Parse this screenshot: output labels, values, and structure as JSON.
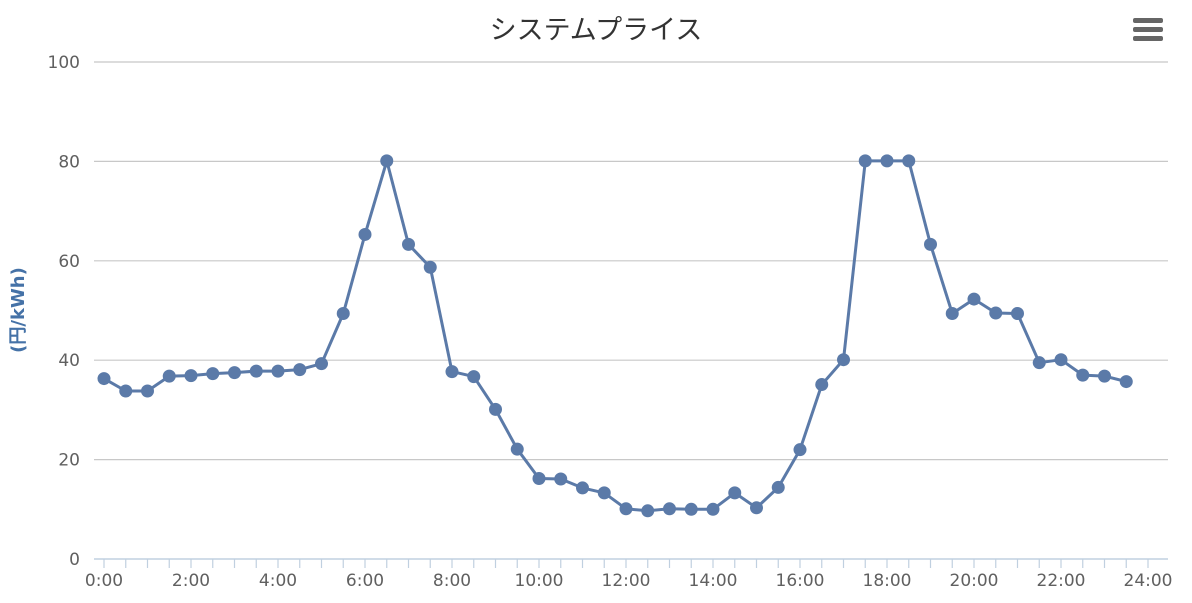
{
  "title": "システムプライス",
  "menu": {
    "icon": "hamburger-menu-icon"
  },
  "chart_data": {
    "type": "line",
    "title": "システムプライス",
    "xlabel": "",
    "ylabel": "(円/kWh)",
    "xlim": [
      0,
      24
    ],
    "ylim": [
      0,
      100
    ],
    "x_ticks": [
      "0:00",
      "2:00",
      "4:00",
      "6:00",
      "8:00",
      "10:00",
      "12:00",
      "14:00",
      "16:00",
      "18:00",
      "20:00",
      "22:00",
      "24:00"
    ],
    "y_ticks": [
      0,
      20,
      40,
      60,
      80,
      100
    ],
    "grid": true,
    "legend": "none",
    "color": "#5b7aa8",
    "x": [
      0,
      0.5,
      1,
      1.5,
      2,
      2.5,
      3,
      3.5,
      4,
      4.5,
      5,
      5.5,
      6,
      6.5,
      7,
      7.5,
      8,
      8.5,
      9,
      9.5,
      10,
      10.5,
      11,
      11.5,
      12,
      12.5,
      13,
      13.5,
      14,
      14.5,
      15,
      15.5,
      16,
      16.5,
      17,
      17.5,
      18,
      18.5,
      19,
      19.5,
      20,
      20.5,
      21,
      21.5,
      22,
      22.5,
      23,
      23.5
    ],
    "values": [
      36.3,
      33.8,
      33.8,
      36.8,
      36.9,
      37.3,
      37.5,
      37.8,
      37.8,
      38.1,
      39.3,
      49.4,
      65.3,
      80.1,
      63.3,
      58.7,
      37.7,
      36.7,
      30.1,
      22.1,
      16.2,
      16.1,
      14.3,
      13.3,
      10.1,
      9.7,
      10.1,
      10.0,
      10.0,
      13.3,
      10.3,
      14.4,
      22.0,
      35.1,
      40.1,
      80.1,
      80.1,
      80.1,
      63.3,
      49.4,
      52.3,
      49.5,
      49.4,
      39.5,
      40.1,
      37.0,
      36.8,
      35.7
    ]
  }
}
